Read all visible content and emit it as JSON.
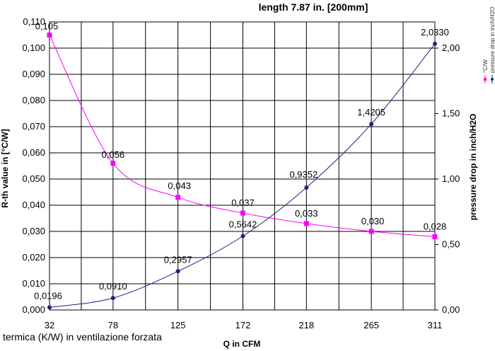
{
  "chart_data": {
    "type": "line",
    "title": "length 7.87 in. [200mm]",
    "xlabel": "Q in CFM",
    "ylabel": "R-th value in [°C/W]",
    "y2label": "pressure drop in inch/H2O",
    "categories": [
      "32",
      "78",
      "125",
      "172",
      "218",
      "265",
      "311"
    ],
    "x": [
      32,
      78,
      125,
      172,
      218,
      265,
      311
    ],
    "xlim": [
      32,
      311
    ],
    "ylim": [
      0,
      0.11
    ],
    "y2lim": [
      0,
      2.2
    ],
    "yticks": [
      "0,000",
      "0,010",
      "0,020",
      "0,030",
      "0,040",
      "0,050",
      "0,060",
      "0,070",
      "0,080",
      "0,090",
      "0,100",
      "0,110"
    ],
    "y2ticks": [
      "0,00",
      "0,50",
      "1,00",
      "1,50",
      "2,00"
    ],
    "y2tick_values": [
      0,
      0.5,
      1.0,
      1.5,
      2.0
    ],
    "grid": true,
    "legend_position": "right",
    "series": [
      {
        "name": "°C/W",
        "axis": "left",
        "color": "#ff00ff",
        "marker": "square",
        "values": [
          0.105,
          0.056,
          0.043,
          0.037,
          0.033,
          0.03,
          0.028
        ],
        "labels": [
          "0,105",
          "0,056",
          "0,043",
          "0,037",
          "0,033",
          "0,030",
          "0,028"
        ]
      },
      {
        "name": "pressure drop in inch/H2O",
        "axis": "right",
        "color": "#1a237e",
        "marker": "diamond",
        "values": [
          0.0196,
          0.091,
          0.2957,
          0.5642,
          0.9352,
          1.4205,
          2.033
        ],
        "labels": [
          "0,0196",
          "0,0910",
          "0,2957",
          "0,5642",
          "0,9352",
          "1,4205",
          "2,0330"
        ]
      }
    ]
  },
  "caption": "termica (K/W) in ventilazione forzata"
}
